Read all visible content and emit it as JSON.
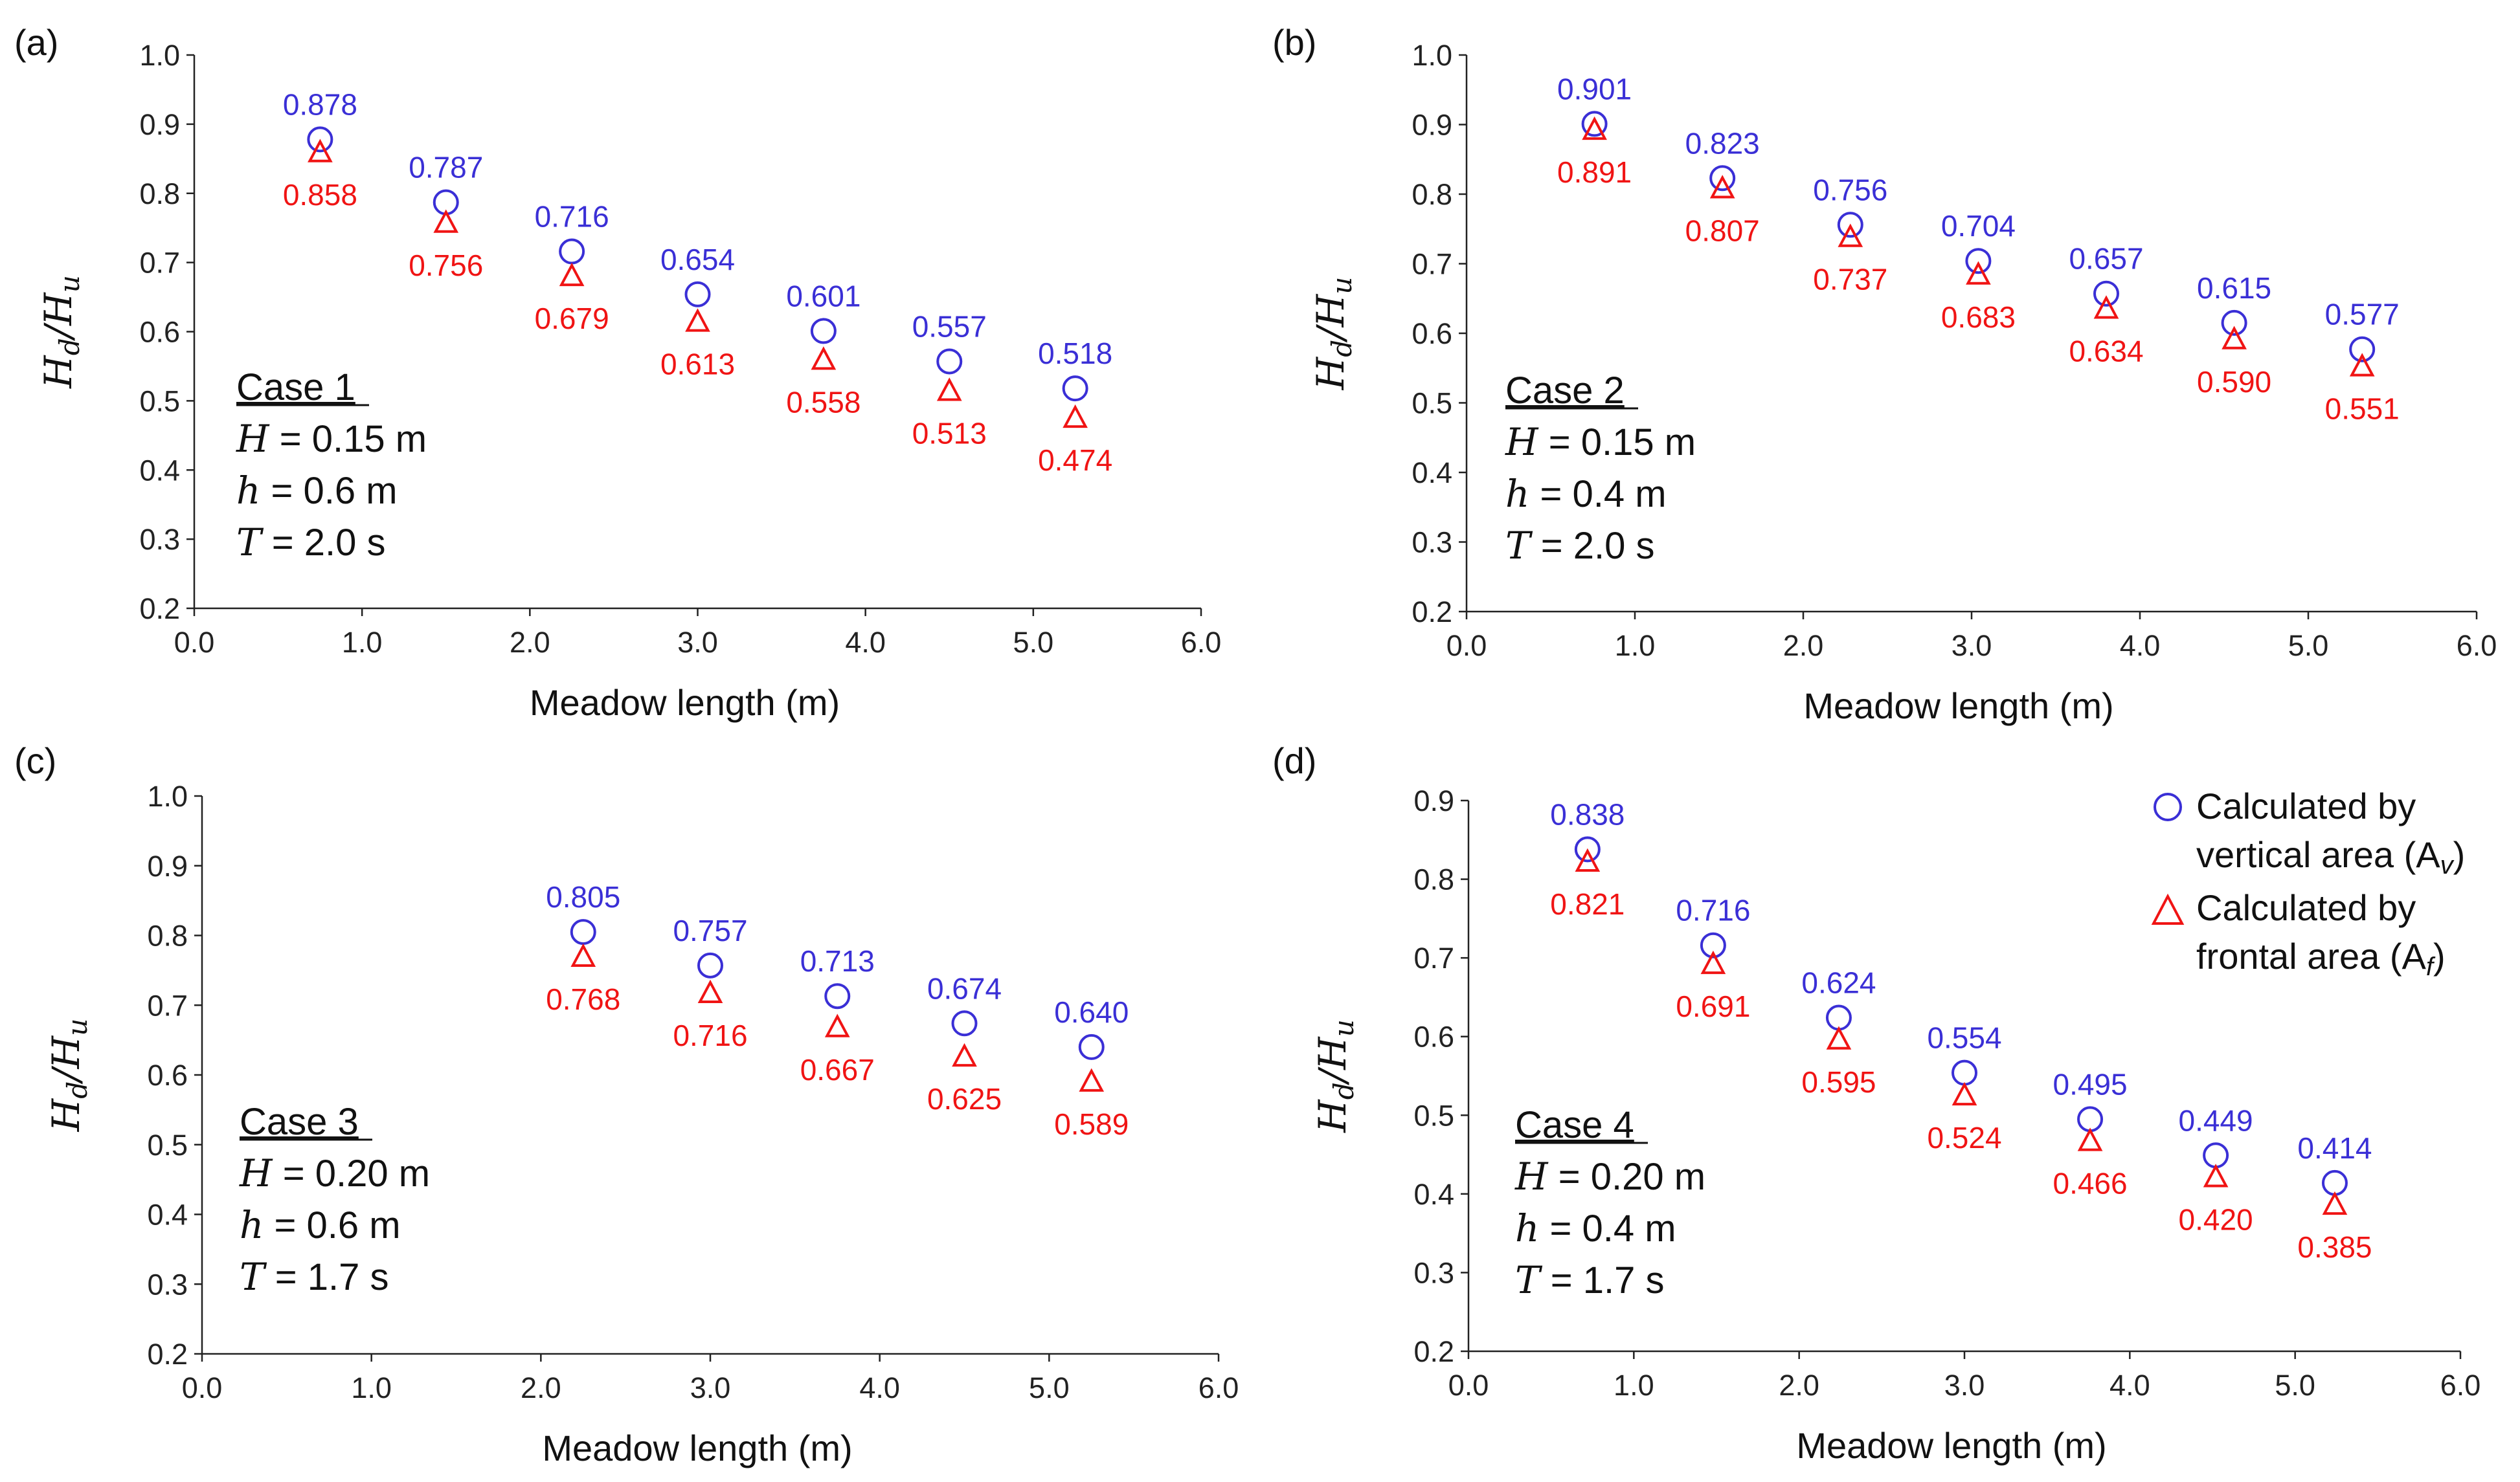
{
  "colors": {
    "vertical": "#3a2fd6",
    "frontal": "#f01414",
    "axis": "#222222"
  },
  "legend": {
    "vertical": {
      "line1": "Calculated by",
      "line2": "vertical area (A",
      "sub": "v",
      "close": ")",
      "icon": "circle-icon"
    },
    "frontal": {
      "line1": "Calculated by",
      "line2": "frontal area (A",
      "sub": "f",
      "close": ")",
      "icon": "triangle-icon"
    }
  },
  "chart_data": [
    {
      "type": "scatter",
      "panel": "(a)",
      "xlabel": "Meadow length (m)",
      "ylabel": {
        "main": "H",
        "sub1": "d",
        "slash": "/H",
        "sub2": "u"
      },
      "xlim": [
        0,
        6
      ],
      "ylim": [
        0.2,
        1.0
      ],
      "xticks": [
        "0.0",
        "1.0",
        "2.0",
        "3.0",
        "4.0",
        "5.0",
        "6.0"
      ],
      "yticks": [
        "0.2",
        "0.3",
        "0.4",
        "0.5",
        "0.6",
        "0.7",
        "0.8",
        "0.9",
        "1.0"
      ],
      "info": {
        "title": "Case 1",
        "H": "H = 0.15 m",
        "h": "h = 0.6 m",
        "T": "T = 2.0 s"
      },
      "x": [
        0.75,
        1.5,
        2.25,
        3.0,
        3.75,
        4.5,
        5.25
      ],
      "series": [
        {
          "name": "Calculated by vertical area (Av)",
          "marker": "circle",
          "values": [
            0.878,
            0.787,
            0.716,
            0.654,
            0.601,
            0.557,
            0.518
          ],
          "labels": [
            "0.878",
            "0.787",
            "0.716",
            "0.654",
            "0.601",
            "0.557",
            "0.518"
          ]
        },
        {
          "name": "Calculated by frontal area (Af)",
          "marker": "triangle",
          "values": [
            0.858,
            0.756,
            0.679,
            0.613,
            0.558,
            0.513,
            0.474
          ],
          "labels": [
            "0.858",
            "0.756",
            "0.679",
            "0.613",
            "0.558",
            "0.513",
            "0.474"
          ]
        }
      ]
    },
    {
      "type": "scatter",
      "panel": "(b)",
      "xlabel": "Meadow length (m)",
      "ylabel": {
        "main": "H",
        "sub1": "d",
        "slash": "/H",
        "sub2": "u"
      },
      "xlim": [
        0,
        6
      ],
      "ylim": [
        0.2,
        1.0
      ],
      "xticks": [
        "0.0",
        "1.0",
        "2.0",
        "3.0",
        "4.0",
        "5.0",
        "6.0"
      ],
      "yticks": [
        "0.2",
        "0.3",
        "0.4",
        "0.5",
        "0.6",
        "0.7",
        "0.8",
        "0.9",
        "1.0"
      ],
      "info": {
        "title": "Case 2",
        "H": "H = 0.15 m",
        "h": "h = 0.4 m",
        "T": "T = 2.0 s"
      },
      "x": [
        0.76,
        1.52,
        2.28,
        3.04,
        3.8,
        4.56,
        5.32
      ],
      "series": [
        {
          "name": "Calculated by vertical area (Av)",
          "marker": "circle",
          "values": [
            0.901,
            0.823,
            0.756,
            0.704,
            0.657,
            0.615,
            0.577
          ],
          "labels": [
            "0.901",
            "0.823",
            "0.756",
            "0.704",
            "0.657",
            "0.615",
            "0.577"
          ]
        },
        {
          "name": "Calculated by frontal area (Af)",
          "marker": "triangle",
          "values": [
            0.891,
            0.807,
            0.737,
            0.683,
            0.634,
            0.59,
            0.551
          ],
          "labels": [
            "0.891",
            "0.807",
            "0.737",
            "0.683",
            "0.634",
            "0.590",
            "0.551"
          ]
        }
      ]
    },
    {
      "type": "scatter",
      "panel": "(c)",
      "xlabel": "Meadow length (m)",
      "ylabel": {
        "main": "H",
        "sub1": "d",
        "slash": "/H",
        "sub2": "u"
      },
      "xlim": [
        0,
        6
      ],
      "ylim": [
        0.2,
        1.0
      ],
      "xticks": [
        "0.0",
        "1.0",
        "2.0",
        "3.0",
        "4.0",
        "5.0",
        "6.0"
      ],
      "yticks": [
        "0.2",
        "0.3",
        "0.4",
        "0.5",
        "0.6",
        "0.7",
        "0.8",
        "0.9",
        "1.0"
      ],
      "info": {
        "title": "Case 3",
        "H": "H = 0.20 m",
        "h": "h = 0.6 m",
        "T": "T = 1.7 s"
      },
      "x": [
        2.25,
        3.0,
        3.75,
        4.5,
        5.25
      ],
      "series": [
        {
          "name": "Calculated by vertical area (Av)",
          "marker": "circle",
          "values": [
            0.805,
            0.757,
            0.713,
            0.674,
            0.64
          ],
          "labels": [
            "0.805",
            "0.757",
            "0.713",
            "0.674",
            "0.640"
          ]
        },
        {
          "name": "Calculated by frontal area (Af)",
          "marker": "triangle",
          "values": [
            0.768,
            0.716,
            0.667,
            0.625,
            0.589
          ],
          "labels": [
            "0.768",
            "0.716",
            "0.667",
            "0.625",
            "0.589"
          ]
        }
      ]
    },
    {
      "type": "scatter",
      "panel": "(d)",
      "xlabel": "Meadow length (m)",
      "ylabel": {
        "main": "H",
        "sub1": "d",
        "slash": "/H",
        "sub2": "u"
      },
      "xlim": [
        0,
        6
      ],
      "ylim": [
        0.2,
        0.9
      ],
      "xticks": [
        "0.0",
        "1.0",
        "2.0",
        "3.0",
        "4.0",
        "5.0",
        "6.0"
      ],
      "yticks": [
        "0.2",
        "0.3",
        "0.4",
        "0.5",
        "0.6",
        "0.7",
        "0.8",
        "0.9"
      ],
      "info": {
        "title": "Case 4",
        "H": "H = 0.20 m",
        "h": "h = 0.4 m",
        "T": "T = 1.7 s"
      },
      "x": [
        0.72,
        1.48,
        2.24,
        3.0,
        3.76,
        4.52,
        5.24
      ],
      "series": [
        {
          "name": "Calculated by vertical area (Av)",
          "marker": "circle",
          "values": [
            0.838,
            0.716,
            0.624,
            0.554,
            0.495,
            0.449,
            0.414
          ],
          "labels": [
            "0.838",
            "0.716",
            "0.624",
            "0.554",
            "0.495",
            "0.449",
            "0.414"
          ]
        },
        {
          "name": "Calculated by frontal area (Af)",
          "marker": "triangle",
          "values": [
            0.821,
            0.691,
            0.595,
            0.524,
            0.466,
            0.42,
            0.385
          ],
          "labels": [
            "0.821",
            "0.691",
            "0.595",
            "0.524",
            "0.466",
            "0.420",
            "0.385"
          ]
        }
      ]
    }
  ]
}
